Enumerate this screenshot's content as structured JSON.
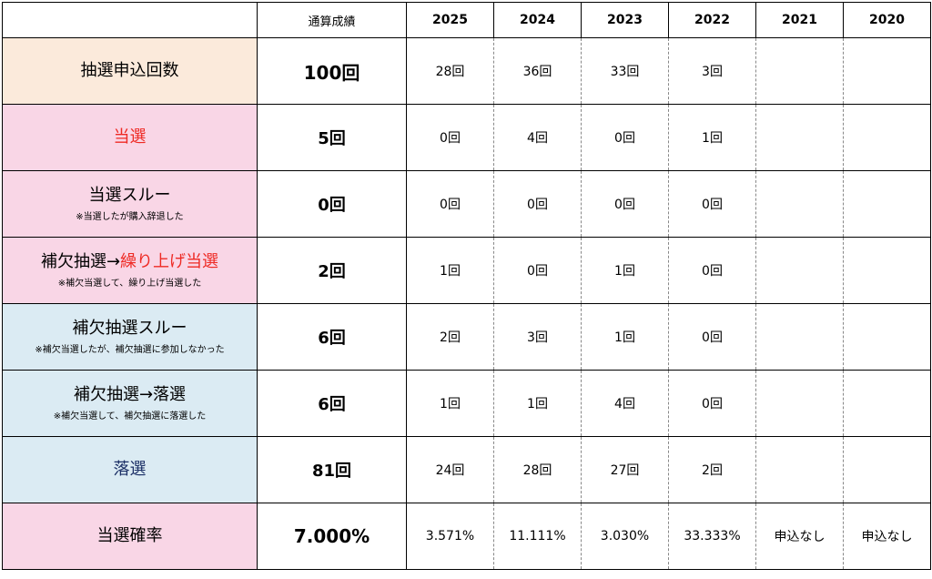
{
  "header": {
    "total": "通算成績",
    "years": [
      "2025",
      "2024",
      "2023",
      "2022",
      "2021",
      "2020"
    ]
  },
  "rows": [
    {
      "label": "抽選申込回数",
      "note": "",
      "total": "100回",
      "values": [
        "28回",
        "36回",
        "33回",
        "3回",
        "",
        ""
      ]
    },
    {
      "label": "当選",
      "note": "",
      "total": "5回",
      "values": [
        "0回",
        "4回",
        "0回",
        "1回",
        "",
        ""
      ]
    },
    {
      "label": "当選スルー",
      "note": "※当選したが購入辞退した",
      "total": "0回",
      "values": [
        "0回",
        "0回",
        "0回",
        "0回",
        "",
        ""
      ]
    },
    {
      "label_a": "補欠抽選→",
      "label_b": "繰り上げ当選",
      "note": "※補欠当選して、繰り上げ当選した",
      "total": "2回",
      "values": [
        "1回",
        "0回",
        "1回",
        "0回",
        "",
        ""
      ]
    },
    {
      "label": "補欠抽選スルー",
      "note": "※補欠当選したが、補欠抽選に参加しなかった",
      "total": "6回",
      "values": [
        "2回",
        "3回",
        "1回",
        "0回",
        "",
        ""
      ]
    },
    {
      "label": "補欠抽選→落選",
      "note": "※補欠当選して、補欠抽選に落選した",
      "total": "6回",
      "values": [
        "1回",
        "1回",
        "4回",
        "0回",
        "",
        ""
      ]
    },
    {
      "label": "落選",
      "note": "",
      "total": "81回",
      "values": [
        "24回",
        "28回",
        "27回",
        "2回",
        "",
        ""
      ]
    },
    {
      "label": "当選確率",
      "note": "",
      "total": "7.000%",
      "values": [
        "3.571%",
        "11.111%",
        "3.030%",
        "33.333%",
        "申込なし",
        "申込なし"
      ]
    }
  ],
  "colors": {
    "orange_bg": "#fbeadb",
    "pink_bg": "#f9d6e6",
    "blue_bg": "#dbebf3",
    "red_text": "#ee2a24",
    "navy_text": "#1b2f66"
  }
}
